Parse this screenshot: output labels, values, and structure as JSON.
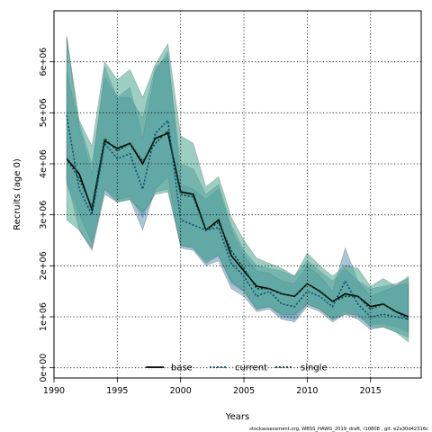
{
  "chart_data": {
    "type": "line",
    "title": "",
    "xlabel": "Years",
    "ylabel": "Recruits (age 0)",
    "xlim": [
      1990,
      2019
    ],
    "ylim": [
      -200000,
      7000000
    ],
    "xticks": [
      1990,
      1995,
      2000,
      2005,
      2010,
      2015
    ],
    "xtick_labels": [
      "1990",
      "1995",
      "2000",
      "2005",
      "2010",
      "2015"
    ],
    "yticks": [
      0,
      1000000,
      2000000,
      3000000,
      4000000,
      5000000,
      6000000
    ],
    "ytick_labels": [
      "0e+00",
      "1e+06",
      "2e+06",
      "3e+06",
      "4e+06",
      "5e+06",
      "6e+06"
    ],
    "grid": true,
    "legend_position": "bottom-center",
    "x": [
      1991,
      1992,
      1993,
      1994,
      1995,
      1996,
      1997,
      1998,
      1999,
      2000,
      2001,
      2002,
      2003,
      2004,
      2005,
      2006,
      2007,
      2008,
      2009,
      2010,
      2011,
      2012,
      2013,
      2014,
      2015,
      2016,
      2017,
      2018
    ],
    "series": [
      {
        "name": "base",
        "color": "#000000",
        "dash": "solid",
        "values": [
          4100000,
          3800000,
          3100000,
          4450000,
          4300000,
          4400000,
          4000000,
          4500000,
          4600000,
          3450000,
          3400000,
          2700000,
          2900000,
          2200000,
          1900000,
          1600000,
          1550000,
          1450000,
          1400000,
          1650000,
          1500000,
          1300000,
          1450000,
          1400000,
          1200000,
          1250000,
          1100000,
          1000000
        ],
        "lower": [
          3600000,
          3000000,
          2450000,
          3500000,
          3300000,
          3350000,
          2950000,
          3450000,
          3500000,
          2400000,
          2350000,
          2100000,
          2200000,
          1650000,
          1500000,
          1150000,
          1200000,
          1000000,
          950000,
          1250000,
          1150000,
          950000,
          1100000,
          1000000,
          850000,
          850000,
          800000,
          700000
        ],
        "upper": [
          5800000,
          4800000,
          4000000,
          5700000,
          5300000,
          5300000,
          4900000,
          5900000,
          6100000,
          4000000,
          3900000,
          3400000,
          3600000,
          2800000,
          2300000,
          2000000,
          1950000,
          1900000,
          1800000,
          2100000,
          1900000,
          1700000,
          1950000,
          1700000,
          1550000,
          1600000,
          1650000,
          1750000
        ],
        "band_color": "#5f95b4"
      },
      {
        "name": "current",
        "color": "#0a4d6e",
        "dash": "dotted",
        "values": [
          4950000,
          3500000,
          3000000,
          4400000,
          4100000,
          4200000,
          3500000,
          4600000,
          4850000,
          2900000,
          2800000,
          2700000,
          2750000,
          2050000,
          1800000,
          1400000,
          1500000,
          1250000,
          1200000,
          1500000,
          1400000,
          1200000,
          1700000,
          1250000,
          1000000,
          1050000,
          1000000,
          950000
        ],
        "lower": [
          3700000,
          2700000,
          2300000,
          3400000,
          3250000,
          3300000,
          2700000,
          3500000,
          3750000,
          2350000,
          2300000,
          2000000,
          2100000,
          1550000,
          1400000,
          1100000,
          1150000,
          950000,
          900000,
          1200000,
          1100000,
          900000,
          1050000,
          950000,
          750000,
          800000,
          700000,
          600000
        ],
        "upper": [
          6500000,
          4700000,
          3800000,
          5900000,
          5300000,
          5500000,
          4500000,
          5800000,
          6200000,
          3600000,
          3500000,
          3300000,
          3500000,
          2700000,
          2200000,
          1900000,
          1850000,
          1700000,
          1650000,
          2000000,
          1800000,
          1500000,
          2350000,
          1700000,
          1400000,
          1500000,
          1600000,
          1650000
        ],
        "band_color": "#5f95b4"
      },
      {
        "name": "single",
        "color": "#0f3d2e",
        "dash": "dotted",
        "values": [
          4100000,
          3700000,
          3150000,
          4500000,
          4250000,
          4400000,
          4050000,
          4400000,
          4650000,
          3400000,
          3350000,
          2700000,
          2850000,
          2300000,
          1950000,
          1550000,
          1550000,
          1450000,
          1400000,
          1650000,
          1500000,
          1300000,
          1400000,
          1400000,
          1150000,
          1250000,
          1100000,
          950000
        ],
        "lower": [
          2900000,
          2700000,
          2350000,
          3500000,
          3250000,
          3300000,
          3050000,
          3400000,
          3450000,
          2400000,
          2350000,
          2050000,
          2200000,
          1700000,
          1500000,
          1150000,
          1200000,
          1050000,
          1050000,
          1250000,
          1150000,
          950000,
          1050000,
          1050000,
          800000,
          800000,
          700000,
          500000
        ],
        "upper": [
          6500000,
          4850000,
          4350000,
          6000000,
          5650000,
          5850000,
          5300000,
          5950000,
          6350000,
          4550000,
          4400000,
          3550000,
          3750000,
          2950000,
          2500000,
          2150000,
          2050000,
          1950000,
          1800000,
          2250000,
          2000000,
          1800000,
          2000000,
          1950000,
          1600000,
          1750000,
          1600000,
          1800000
        ],
        "band_color": "#4aa88e"
      }
    ],
    "footnote": "stockassessment.org,  WBSS_HAWG_2019_draft,  r10808 ,  git: e2a30d42316c"
  }
}
